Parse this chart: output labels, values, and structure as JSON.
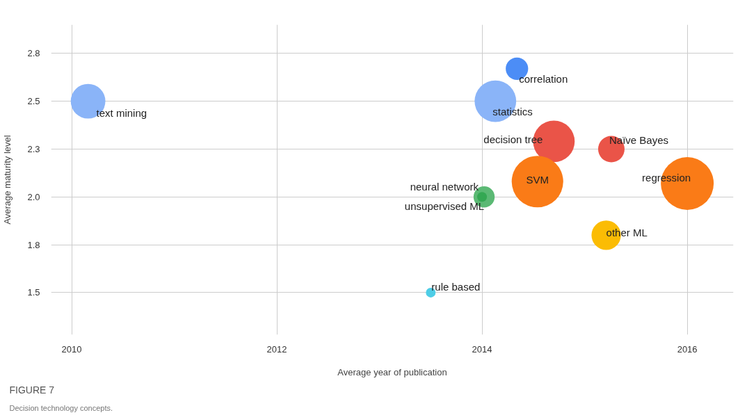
{
  "chart_data": {
    "type": "bubble",
    "xlabel": "Average year of publication",
    "ylabel": "Average maturity level",
    "xlim": [
      2009.8,
      2016.45
    ],
    "xticks": [
      2010,
      2012,
      2014,
      2016
    ],
    "ylim": [
      1.28,
      2.9
    ],
    "yticks": [
      {
        "value": 1.5,
        "label": "1.5"
      },
      {
        "value": 1.75,
        "label": "1.8"
      },
      {
        "value": 2.0,
        "label": "2.0"
      },
      {
        "value": 2.25,
        "label": "2.3"
      },
      {
        "value": 2.5,
        "label": "2.5"
      },
      {
        "value": 2.75,
        "label": "2.8"
      }
    ],
    "grid": true,
    "legend": false,
    "series": [
      {
        "name": "text mining",
        "color": "#8ab4f8",
        "x": [
          2010.16
        ],
        "values": [
          2.5
        ],
        "sizes": [
          0.43
        ]
      },
      {
        "name": "correlation",
        "color": "#4c8df6",
        "x": [
          2014.34
        ],
        "values": [
          2.67
        ],
        "sizes": [
          0.18
        ]
      },
      {
        "name": "statistics",
        "color": "#8ab4f8",
        "x": [
          2014.13
        ],
        "values": [
          2.5
        ],
        "sizes": [
          0.62
        ]
      },
      {
        "name": "decision tree",
        "color": "#ea5448",
        "x": [
          2014.7
        ],
        "values": [
          2.29
        ],
        "sizes": [
          0.62
        ]
      },
      {
        "name": "Naïve Bayes",
        "color": "#ea5448",
        "x": [
          2015.26
        ],
        "values": [
          2.25
        ],
        "sizes": [
          0.25
        ]
      },
      {
        "name": "SVM",
        "color": "#fa7b17",
        "x": [
          2014.54
        ],
        "values": [
          2.08
        ],
        "sizes": [
          0.95
        ]
      },
      {
        "name": "regression",
        "color": "#fa7b17",
        "x": [
          2016.0
        ],
        "values": [
          2.07
        ],
        "sizes": [
          1
        ]
      },
      {
        "name": "neural network",
        "color": "#5bb974",
        "x": [
          2014.02
        ],
        "values": [
          2.0
        ],
        "sizes": [
          0.16
        ]
      },
      {
        "name": "unsupervised ML",
        "color": "#34a853",
        "x": [
          2014.0
        ],
        "values": [
          2.0
        ],
        "sizes": [
          0.034
        ]
      },
      {
        "name": "other ML",
        "color": "#fbbc04",
        "x": [
          2015.21
        ],
        "values": [
          1.8
        ],
        "sizes": [
          0.31
        ]
      },
      {
        "name": "rule based",
        "color": "#4ecde6",
        "x": [
          2013.5
        ],
        "values": [
          1.5
        ],
        "sizes": [
          0.034
        ]
      }
    ],
    "annotations": [
      "FIGURE 7",
      "Decision technology concepts."
    ]
  }
}
